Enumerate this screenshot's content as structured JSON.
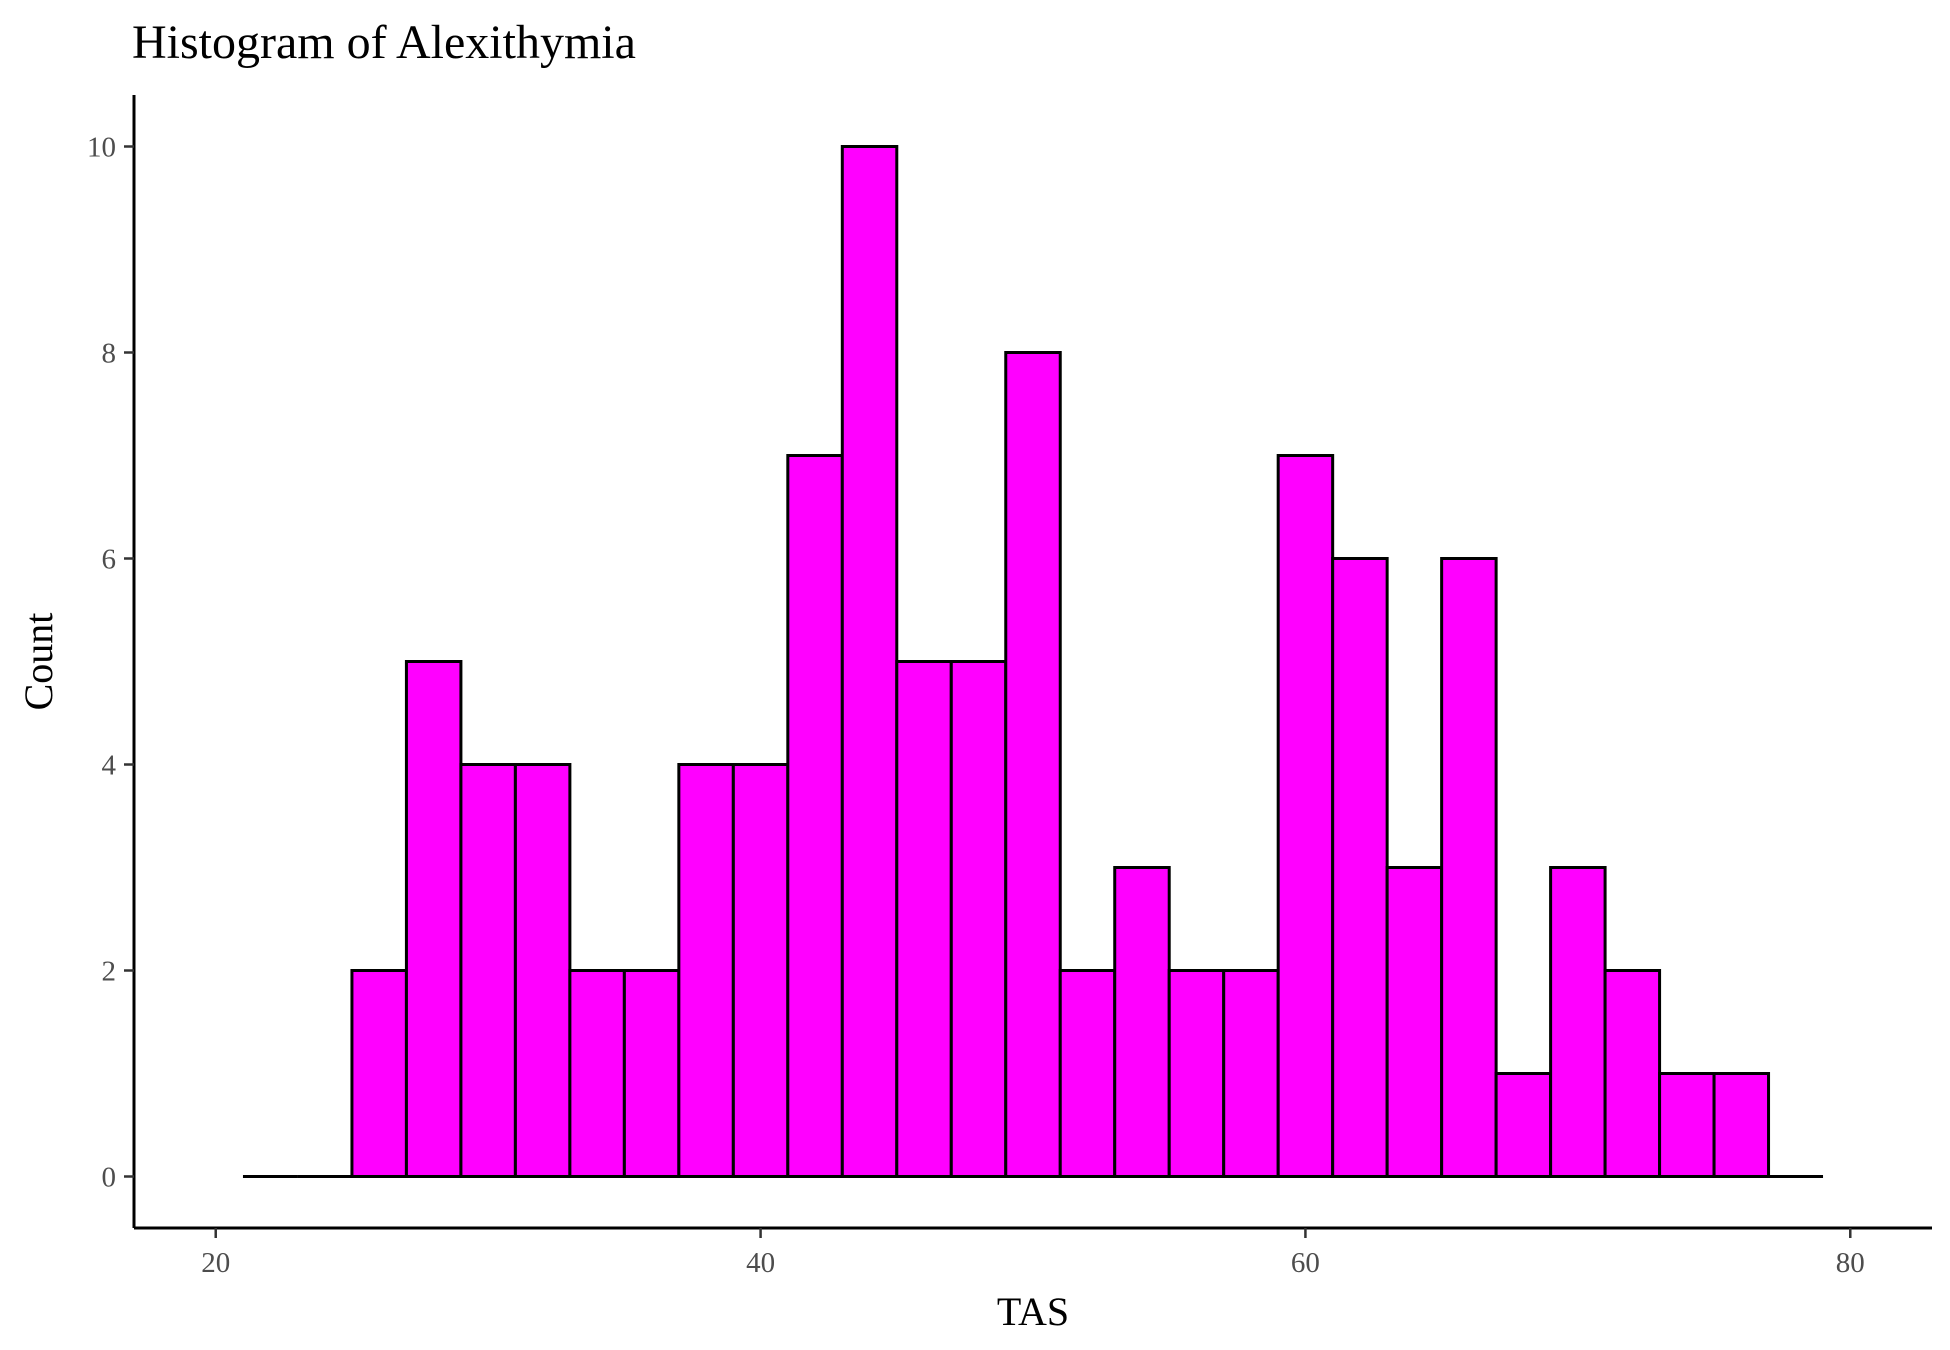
{
  "chart_data": {
    "type": "bar",
    "title": "Histogram of Alexithymia",
    "xlabel": "TAS",
    "ylabel": "Count",
    "bin_width": 2,
    "bin_starts": [
      21,
      23,
      25,
      27,
      29,
      31,
      33,
      35,
      37,
      39,
      41,
      43,
      45,
      47,
      49,
      51,
      53,
      55,
      57,
      59,
      61,
      63,
      65,
      67,
      69,
      71,
      73,
      75,
      77
    ],
    "counts": [
      0,
      0,
      2,
      5,
      4,
      4,
      2,
      2,
      4,
      4,
      7,
      10,
      5,
      5,
      8,
      2,
      3,
      2,
      2,
      7,
      6,
      3,
      6,
      1,
      3,
      2,
      1,
      1,
      0
    ],
    "xlim": [
      17,
      83
    ],
    "ylim": [
      -0.5,
      10.5
    ],
    "x_ticks": [
      20,
      40,
      60,
      80
    ],
    "y_ticks": [
      0,
      2,
      4,
      6,
      8,
      10
    ],
    "bar_fill": "#ff00ff",
    "bar_outline": "#000000",
    "grid": false,
    "legend": "none"
  }
}
